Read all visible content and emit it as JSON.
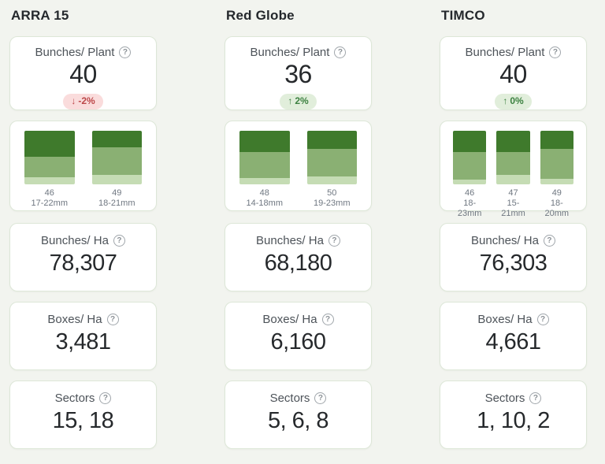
{
  "colors": {
    "bar_dark": "#3f7a2c",
    "bar_mid": "#8ab073",
    "bar_light": "#c5dcb4",
    "page_bg": "#f2f4ef",
    "card_border": "#dde7d8",
    "badge_down_bg": "#fadcdc",
    "badge_down_text": "#bc4749",
    "badge_up_bg": "#e1eedb",
    "badge_up_text": "#3c8140"
  },
  "labels": {
    "bunches_plant": "Bunches/ Plant",
    "bunches_ha": "Bunches/ Ha",
    "boxes_ha": "Boxes/ Ha",
    "sectors": "Sectors",
    "help_glyph": "?"
  },
  "chart_data": [
    {
      "type": "bar",
      "title": "ARRA 15 bunch size distribution",
      "categories": [
        "46 (17-22mm)",
        "49 (18-21mm)"
      ],
      "series": [
        {
          "name": "dark",
          "values": [
            48,
            31
          ]
        },
        {
          "name": "mid",
          "values": [
            39,
            52
          ]
        },
        {
          "name": "light",
          "values": [
            13,
            17
          ]
        }
      ]
    },
    {
      "type": "bar",
      "title": "Red Globe bunch size distribution",
      "categories": [
        "48 (14-18mm)",
        "50 (19-23mm)"
      ],
      "series": [
        {
          "name": "dark",
          "values": [
            40,
            34
          ]
        },
        {
          "name": "mid",
          "values": [
            48,
            52
          ]
        },
        {
          "name": "light",
          "values": [
            12,
            14
          ]
        }
      ]
    },
    {
      "type": "bar",
      "title": "TIMCO bunch size distribution",
      "categories": [
        "46 (18-23mm)",
        "47 (15-21mm)",
        "49 (18-20mm)"
      ],
      "series": [
        {
          "name": "dark",
          "values": [
            40,
            40,
            34
          ]
        },
        {
          "name": "mid",
          "values": [
            51,
            42,
            55
          ]
        },
        {
          "name": "light",
          "values": [
            9,
            18,
            11
          ]
        }
      ]
    }
  ],
  "columns": [
    {
      "title": "ARRA 15",
      "bunches_per_plant": {
        "value": "40",
        "arrow": "↓",
        "change": "-2%",
        "direction": "down"
      },
      "bars": [
        {
          "count": "46",
          "range": "17-22mm",
          "segments": [
            48,
            39,
            13
          ]
        },
        {
          "count": "49",
          "range": "18-21mm",
          "segments": [
            31,
            52,
            17
          ]
        }
      ],
      "bunches_per_ha": "78,307",
      "boxes_per_ha": "3,481",
      "sectors": "15, 18"
    },
    {
      "title": "Red Globe",
      "bunches_per_plant": {
        "value": "36",
        "arrow": "↑",
        "change": "2%",
        "direction": "up"
      },
      "bars": [
        {
          "count": "48",
          "range": "14-18mm",
          "segments": [
            40,
            48,
            12
          ]
        },
        {
          "count": "50",
          "range": "19-23mm",
          "segments": [
            34,
            52,
            14
          ]
        }
      ],
      "bunches_per_ha": "68,180",
      "boxes_per_ha": "6,160",
      "sectors": "5, 6, 8"
    },
    {
      "title": "TIMCO",
      "bunches_per_plant": {
        "value": "40",
        "arrow": "↑",
        "change": "0%",
        "direction": "up"
      },
      "bars": [
        {
          "count": "46",
          "range": "18-23mm",
          "segments": [
            40,
            51,
            9
          ]
        },
        {
          "count": "47",
          "range": "15-21mm",
          "segments": [
            40,
            42,
            18
          ]
        },
        {
          "count": "49",
          "range": "18-20mm",
          "segments": [
            34,
            55,
            11
          ]
        }
      ],
      "bunches_per_ha": "76,303",
      "boxes_per_ha": "4,661",
      "sectors": "1, 10, 2"
    }
  ]
}
